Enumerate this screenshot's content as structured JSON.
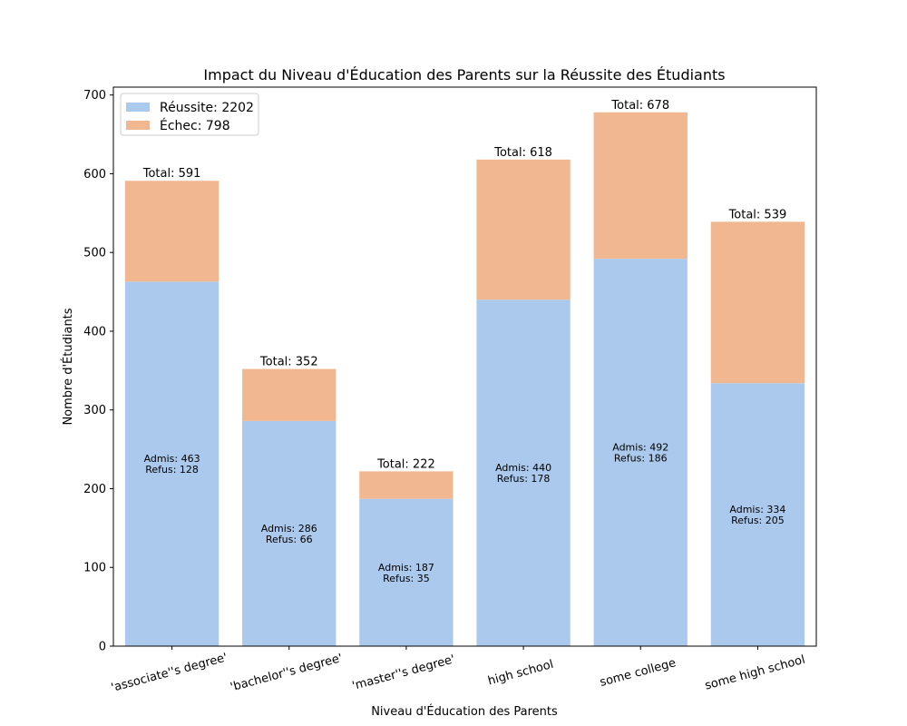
{
  "chart_data": {
    "type": "bar",
    "stacked": true,
    "title": "Impact du Niveau d'Éducation des Parents sur la Réussite des Étudiants",
    "xlabel": "Niveau d'Éducation des Parents",
    "ylabel": "Nombre d'Étudiants",
    "ylim": [
      0,
      710
    ],
    "yticks": [
      0,
      100,
      200,
      300,
      400,
      500,
      600,
      700
    ],
    "grid": false,
    "legend_position": "top-left",
    "categories": [
      "'associate''s degree'",
      "'bachelor''s degree'",
      "'master''s degree'",
      "high school",
      "some college",
      "some high school"
    ],
    "series": [
      {
        "name": "Réussite: 2202",
        "color": "#abc9ec",
        "values": [
          463,
          286,
          187,
          440,
          492,
          334
        ]
      },
      {
        "name": "Échec: 798",
        "color": "#f1b791",
        "values": [
          128,
          66,
          35,
          178,
          186,
          205
        ]
      }
    ],
    "totals": [
      "Total: 591",
      "Total: 352",
      "Total: 222",
      "Total: 618",
      "Total: 678",
      "Total: 539"
    ],
    "inner_labels": [
      [
        "Admis: 463",
        "Refus: 128"
      ],
      [
        "Admis: 286",
        "Refus: 66"
      ],
      [
        "Admis: 187",
        "Refus: 35"
      ],
      [
        "Admis: 440",
        "Refus: 178"
      ],
      [
        "Admis: 492",
        "Refus: 186"
      ],
      [
        "Admis: 334",
        "Refus: 205"
      ]
    ]
  }
}
